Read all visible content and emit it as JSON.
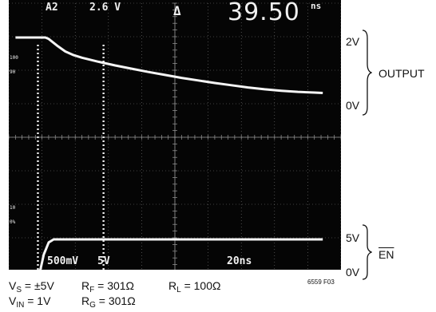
{
  "scope_header": {
    "channel": "A2",
    "level": "2.6 V",
    "delta_label": "Δ",
    "measurement": "39.50",
    "measurement_unit": "ns"
  },
  "scope_footer": {
    "ch1_scale": "500mV",
    "ch2_scale": "5V",
    "time_scale": "20ns"
  },
  "marker_labels": {
    "m100": "100",
    "m90": "90",
    "m10": "10",
    "m0": "0%"
  },
  "chart_data": {
    "type": "line",
    "title": "",
    "xlabel": "",
    "ylabel": "",
    "time_per_div_ns": 20,
    "divisions": {
      "x": 10,
      "y": 8
    },
    "series": [
      {
        "name": "OUTPUT",
        "x_ns": [
          -20,
          -2,
          0,
          5,
          10,
          15,
          20,
          30,
          40,
          50,
          60,
          70,
          80,
          90,
          100,
          110,
          120,
          130,
          140,
          150,
          160,
          165
        ],
        "y_v": [
          2.0,
          2.0,
          1.96,
          1.78,
          1.62,
          1.52,
          1.45,
          1.34,
          1.24,
          1.15,
          1.06,
          0.98,
          0.9,
          0.83,
          0.76,
          0.7,
          0.64,
          0.59,
          0.55,
          0.52,
          0.5,
          0.49
        ]
      },
      {
        "name": "EN",
        "x_ns": [
          -20,
          -7,
          -5,
          -3,
          0,
          3,
          10,
          165
        ],
        "y_v": [
          -0.6,
          -0.6,
          0.0,
          2.5,
          4.5,
          5.0,
          5.0,
          5.0
        ]
      }
    ],
    "cursors_ns": [
      -6.5,
      33
    ]
  },
  "right_labels": {
    "out_top": "2V",
    "out_bottom": "0V",
    "out_name": "OUTPUT",
    "en_top": "5V",
    "en_bottom": "0V",
    "en_name": "EN"
  },
  "conditions": {
    "vs": "VS = ±5V",
    "rf": "RF = 301Ω",
    "rl": "RL = 100Ω",
    "vin": "VIN = 1V",
    "rg": "RG = 301Ω"
  },
  "figure_id": "6559 F03"
}
